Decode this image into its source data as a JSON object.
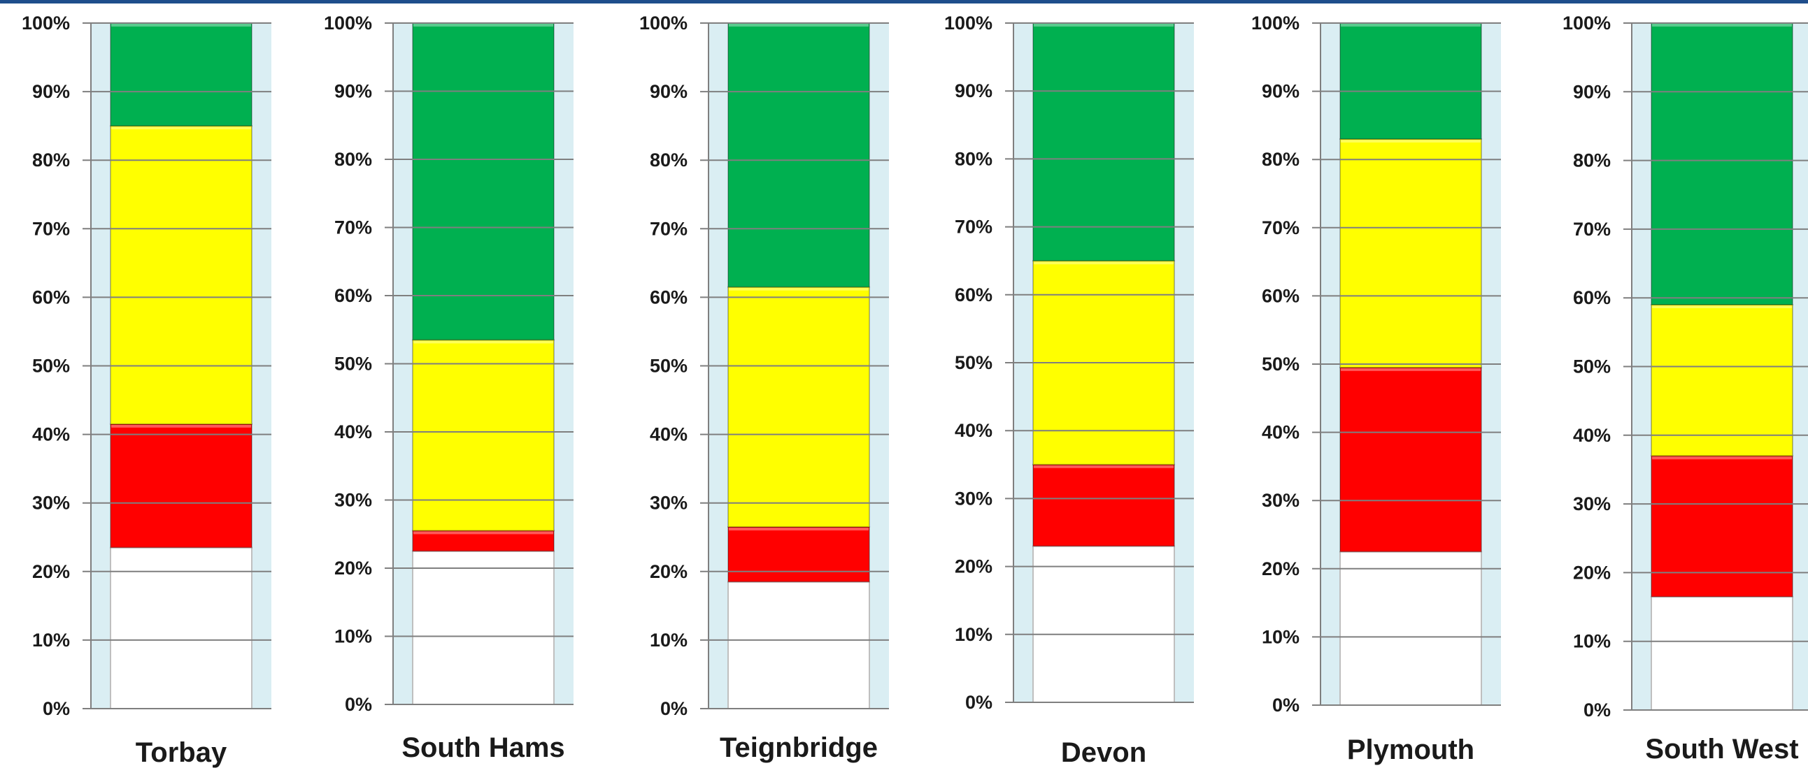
{
  "chart_data": {
    "type": "bar",
    "stacked": true,
    "percent_axis": true,
    "ylim": [
      0,
      100
    ],
    "y_ticks": [
      "0%",
      "10%",
      "20%",
      "30%",
      "40%",
      "50%",
      "60%",
      "70%",
      "80%",
      "90%",
      "100%"
    ],
    "grid": false,
    "legend": "none",
    "panel_background": "#daeef3",
    "series": [
      {
        "color": "#ffffff",
        "values": [
          23.5,
          22.5,
          18.5,
          23,
          22.5,
          16.5
        ]
      },
      {
        "color": "#ff0000",
        "values": [
          18,
          3,
          8,
          12,
          27,
          20.5
        ]
      },
      {
        "color": "#ffff00",
        "values": [
          43.5,
          28,
          35,
          30,
          33.5,
          22
        ]
      },
      {
        "color": "#00b050",
        "values": [
          15,
          46.5,
          38.5,
          35,
          17,
          41
        ]
      }
    ],
    "categories": [
      "Torbay",
      "South Hams",
      "Teignbridge",
      "Devon",
      "Plymouth",
      "South West"
    ]
  }
}
